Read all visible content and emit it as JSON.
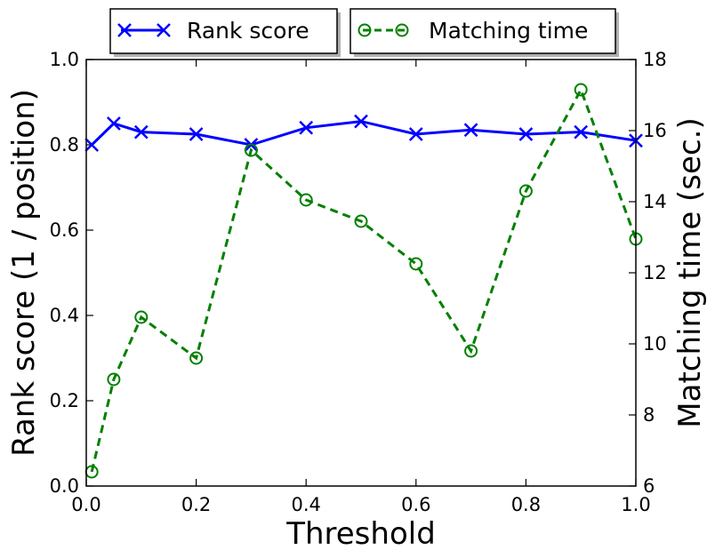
{
  "chart_data": {
    "type": "line",
    "title": "",
    "xlabel": "Threshold",
    "ylabel_left": "Rank score (1 / position)",
    "ylabel_right": "Matching time (sec.)",
    "xlim": [
      0.0,
      1.0
    ],
    "ylim_left": [
      0.0,
      1.0
    ],
    "ylim_right": [
      6,
      18
    ],
    "x_ticks": [
      "0.0",
      "0.2",
      "0.4",
      "0.6",
      "0.8",
      "1.0"
    ],
    "y_left_ticks": [
      "0.0",
      "0.2",
      "0.4",
      "0.6",
      "0.8",
      "1.0"
    ],
    "y_right_ticks": [
      "6",
      "8",
      "10",
      "12",
      "14",
      "16",
      "18"
    ],
    "grid": false,
    "legend_placement": "above plot, two boxes",
    "series": [
      {
        "name": "Rank score",
        "axis": "left",
        "color": "#0000ff",
        "linestyle": "solid",
        "marker": "x",
        "x": [
          0.01,
          0.05,
          0.1,
          0.2,
          0.3,
          0.4,
          0.5,
          0.6,
          0.7,
          0.8,
          0.9,
          1.0
        ],
        "y": [
          0.8,
          0.85,
          0.83,
          0.825,
          0.8,
          0.84,
          0.855,
          0.825,
          0.835,
          0.825,
          0.83,
          0.81
        ]
      },
      {
        "name": "Matching time",
        "axis": "right",
        "color": "#008000",
        "linestyle": "dashed",
        "marker": "o",
        "x": [
          0.01,
          0.05,
          0.1,
          0.2,
          0.3,
          0.4,
          0.5,
          0.6,
          0.7,
          0.8,
          0.9,
          1.0
        ],
        "y": [
          6.4,
          9.0,
          10.75,
          9.6,
          15.45,
          14.05,
          13.45,
          12.25,
          9.8,
          14.3,
          17.15,
          12.95
        ]
      }
    ]
  }
}
